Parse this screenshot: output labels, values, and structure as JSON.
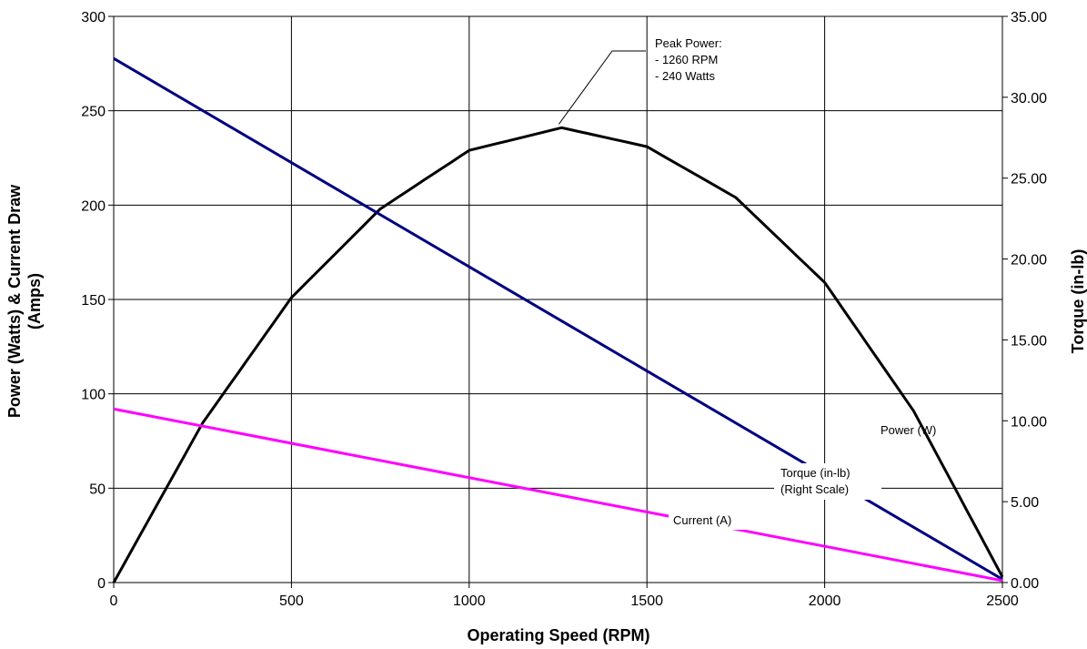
{
  "chart_data": {
    "type": "line",
    "title": "",
    "xlabel": "Operating Speed (RPM)",
    "ylabel_left": [
      "Power (Watts) & Current Draw",
      "(Amps)"
    ],
    "ylabel_right": "Torque (in-lb)",
    "xlim": [
      0,
      2500
    ],
    "ylim_left": [
      0,
      300
    ],
    "ylim_right": [
      0,
      35
    ],
    "x_ticks": [
      "0",
      "500",
      "1000",
      "1500",
      "2000",
      "2500"
    ],
    "y_left_ticks": [
      "0",
      "50",
      "100",
      "150",
      "200",
      "250",
      "300"
    ],
    "y_right_ticks": [
      "0.00",
      "5.00",
      "10.00",
      "15.00",
      "20.00",
      "25.00",
      "30.00",
      "35.00"
    ],
    "grid": true,
    "series": [
      {
        "name": "Power (W)",
        "axis": "left",
        "color": "#000000",
        "shape": "parabola",
        "x": [
          0,
          250,
          500,
          750,
          1000,
          1260,
          1500,
          1750,
          2000,
          2250,
          2500
        ],
        "y": [
          0,
          84.5,
          151,
          198,
          229,
          241,
          231,
          204,
          159,
          91,
          3
        ]
      },
      {
        "name": "Torque (in-lb)",
        "axis": "right",
        "color": "#000080",
        "shape": "line",
        "x": [
          0,
          2500
        ],
        "y": [
          32.4,
          0.2
        ]
      },
      {
        "name": "Current (A)",
        "axis": "left",
        "color": "#ff00ff",
        "shape": "line",
        "x": [
          0,
          2500
        ],
        "y": [
          92,
          1
        ]
      }
    ],
    "annotations": {
      "peak": {
        "lines": [
          "Peak Power:",
          "- 1260 RPM",
          "- 240 Watts"
        ],
        "x": 1260,
        "y": 240
      },
      "power_label": "Power (W)",
      "torque_label": [
        "Torque (in-lb)",
        "(Right Scale)"
      ],
      "current_label": "Current (A)"
    }
  }
}
